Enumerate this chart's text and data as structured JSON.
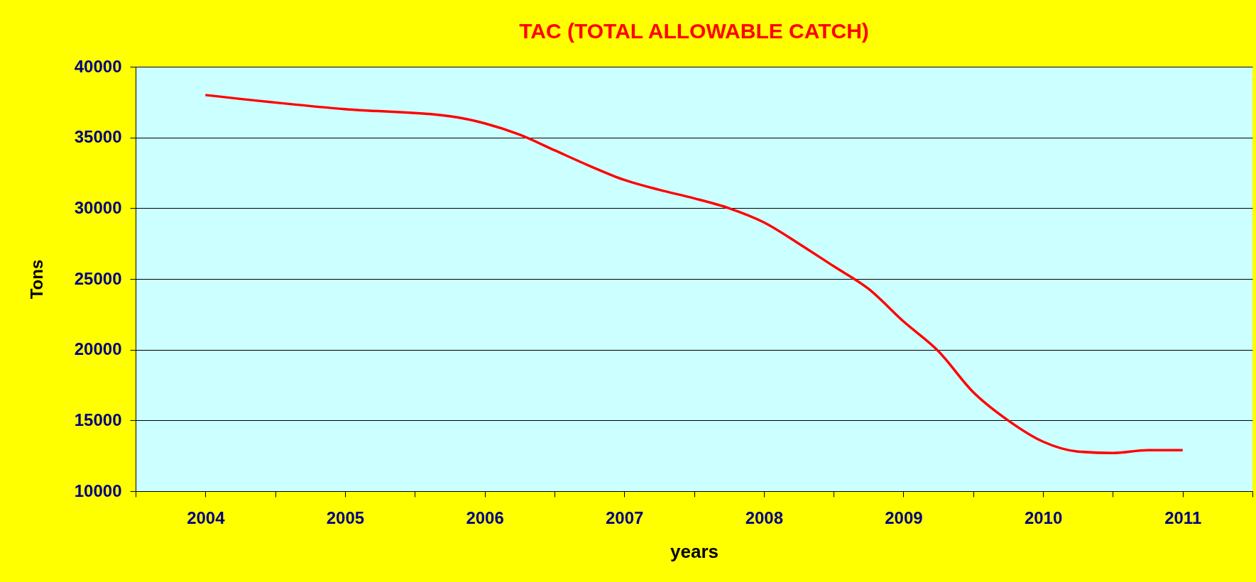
{
  "chart_data": {
    "type": "line",
    "title": "TAC (TOTAL ALLOWABLE CATCH)",
    "xlabel": "years",
    "ylabel": "Tons",
    "x": [
      2004,
      2005,
      2005.75,
      2006,
      2006.25,
      2006.5,
      2006.75,
      2007,
      2007.25,
      2007.5,
      2007.75,
      2008,
      2008.25,
      2008.5,
      2008.75,
      2009,
      2009.25,
      2009.5,
      2009.75,
      2010,
      2010.25,
      2010.5,
      2010.75,
      2011
    ],
    "series": [
      {
        "color": "#ff0000",
        "values": [
          38000,
          37000,
          36500,
          36000,
          35200,
          34100,
          33000,
          32000,
          31300,
          30700,
          30000,
          29000,
          27500,
          25900,
          24300,
          22000,
          19900,
          17000,
          15000,
          13500,
          12800,
          12700,
          12900,
          12900
        ]
      }
    ],
    "xlim": [
      2003.5,
      2011.5
    ],
    "xticks": [
      {
        "value": 2003.5,
        "label": null
      },
      2004,
      {
        "value": 2004.5,
        "label": null
      },
      2005,
      {
        "value": 2005.5,
        "label": null
      },
      2006,
      {
        "value": 2006.5,
        "label": null
      },
      2007,
      {
        "value": 2007.5,
        "label": null
      },
      2008,
      {
        "value": 2008.5,
        "label": null
      },
      2009,
      {
        "value": 2009.5,
        "label": null
      },
      2010,
      {
        "value": 2010.5,
        "label": null
      },
      2011,
      {
        "value": 2011.5,
        "label": null
      }
    ],
    "ylim": [
      10000,
      40000
    ],
    "yticks": [
      10000,
      15000,
      20000,
      25000,
      30000,
      35000,
      40000
    ],
    "grid": "y",
    "marker": "none",
    "line_style": "solid"
  }
}
